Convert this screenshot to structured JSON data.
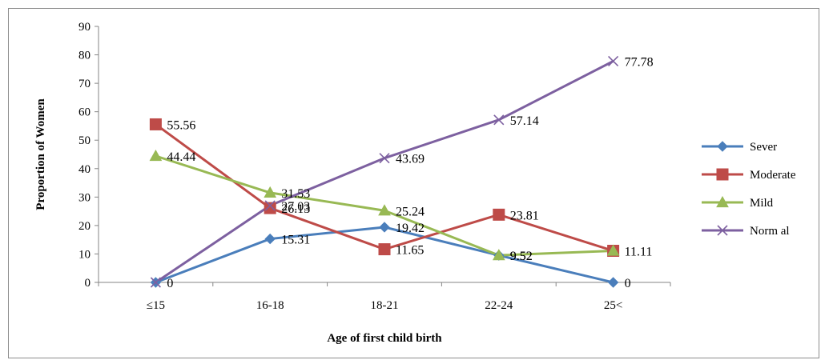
{
  "chart_data": {
    "type": "line",
    "categories": [
      "≤15",
      "16-18",
      "18-21",
      "22-24",
      "25<"
    ],
    "xlabel": "Age of first child birth",
    "ylabel": "Proportion of Women",
    "ylim": [
      0,
      90
    ],
    "yticks": [
      0,
      10,
      20,
      30,
      40,
      50,
      60,
      70,
      80,
      90
    ],
    "grid": false,
    "legend_position": "right",
    "series": [
      {
        "name": "Sever",
        "values": [
          0,
          15.31,
          19.42,
          9.52,
          0
        ],
        "labels": [
          "0",
          "15.31",
          "19.42",
          "9.52",
          "0"
        ],
        "color": "#4a7ebb",
        "marker": "diamond"
      },
      {
        "name": "Moderate",
        "values": [
          55.56,
          26.13,
          11.65,
          23.81,
          11.11
        ],
        "labels": [
          "55.56",
          "26.13",
          "11.65",
          "23.81",
          "11.11"
        ],
        "color": "#be4b48",
        "marker": "square"
      },
      {
        "name": "Mild",
        "values": [
          44.44,
          31.53,
          25.24,
          9.52,
          11.11
        ],
        "labels": [
          "44.44",
          "31.53",
          "25.24",
          "9.52",
          ""
        ],
        "color": "#98b954",
        "marker": "triangle"
      },
      {
        "name": "Norm al",
        "values": [
          0,
          27.03,
          43.69,
          57.14,
          77.78
        ],
        "labels": [
          "",
          "27.03",
          "43.69",
          "57.14",
          "77.78"
        ],
        "color": "#7d60a0",
        "marker": "x"
      }
    ]
  }
}
